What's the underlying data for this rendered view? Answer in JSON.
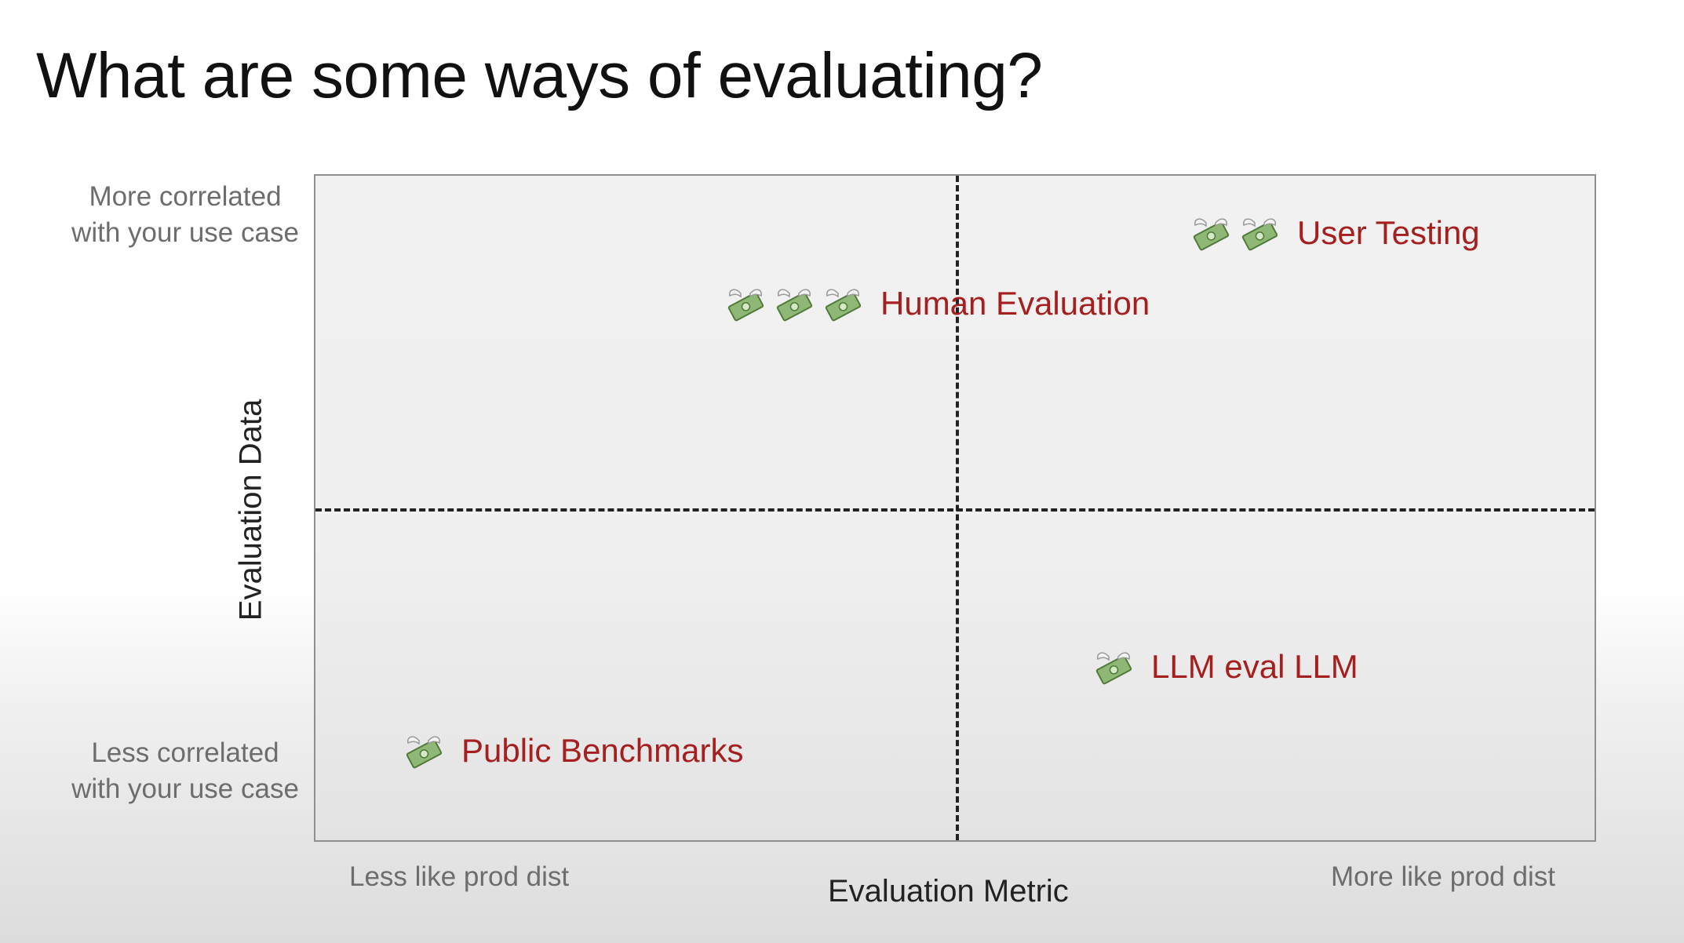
{
  "slide": {
    "title": "What are some ways of evaluating?"
  },
  "axes": {
    "y_title": "Evaluation Data",
    "y_top_label": "More correlated with your use case",
    "y_bottom_label": "Less correlated with your use case",
    "x_title": "Evaluation Metric",
    "x_left_label": "Less like prod dist",
    "x_right_label": "More like prod dist"
  },
  "methods": [
    {
      "label": "User Testing",
      "cost_icons": 2,
      "icon": "money-with-wings-icon"
    },
    {
      "label": "Human Evaluation",
      "cost_icons": 3,
      "icon": "money-with-wings-icon"
    },
    {
      "label": "LLM eval LLM",
      "cost_icons": 1,
      "icon": "money-with-wings-icon"
    },
    {
      "label": "Public Benchmarks",
      "cost_icons": 1,
      "icon": "money-with-wings-icon"
    }
  ],
  "colors": {
    "method_label": "#a51f1f",
    "axis_tick": "#6d6d6d",
    "divider": "#222222"
  }
}
